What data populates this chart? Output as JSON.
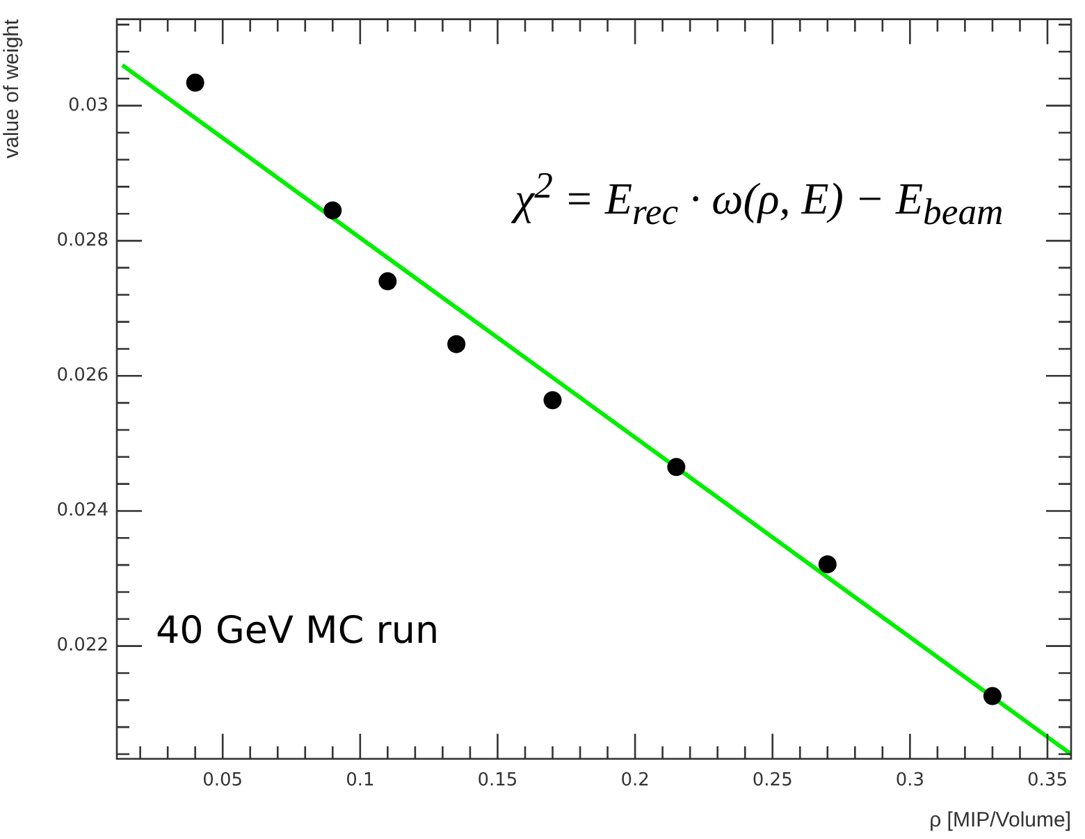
{
  "chart_data": {
    "type": "scatter",
    "xlabel": "ρ [MIP/Volume]",
    "ylabel": "value of weight",
    "xlim": [
      0.0115,
      0.3586
    ],
    "ylim": [
      0.02033,
      0.03128
    ],
    "xticks": [
      {
        "value": 0.02,
        "label": null
      },
      {
        "value": 0.03,
        "label": null
      },
      {
        "value": 0.04,
        "label": null
      },
      0.05,
      {
        "value": 0.06,
        "label": null
      },
      {
        "value": 0.07,
        "label": null
      },
      {
        "value": 0.08,
        "label": null
      },
      {
        "value": 0.09,
        "label": null
      },
      0.1,
      {
        "value": 0.11,
        "label": null
      },
      {
        "value": 0.12,
        "label": null
      },
      {
        "value": 0.13,
        "label": null
      },
      {
        "value": 0.14,
        "label": null
      },
      0.15,
      {
        "value": 0.16,
        "label": null
      },
      {
        "value": 0.17,
        "label": null
      },
      {
        "value": 0.18,
        "label": null
      },
      {
        "value": 0.19,
        "label": null
      },
      0.2,
      {
        "value": 0.21,
        "label": null
      },
      {
        "value": 0.22,
        "label": null
      },
      {
        "value": 0.23,
        "label": null
      },
      {
        "value": 0.24,
        "label": null
      },
      0.25,
      {
        "value": 0.26,
        "label": null
      },
      {
        "value": 0.27,
        "label": null
      },
      {
        "value": 0.28,
        "label": null
      },
      {
        "value": 0.29,
        "label": null
      },
      0.3,
      {
        "value": 0.31,
        "label": null
      },
      {
        "value": 0.32,
        "label": null
      },
      {
        "value": 0.33,
        "label": null
      },
      {
        "value": 0.34,
        "label": null
      },
      0.35
    ],
    "yticks": [
      {
        "value": 0.0204,
        "label": null
      },
      {
        "value": 0.0208,
        "label": null
      },
      0.022,
      {
        "value": 0.0212,
        "label": null
      },
      {
        "value": 0.0216,
        "label": null
      },
      {
        "value": 0.0224,
        "label": null
      },
      {
        "value": 0.0228,
        "label": null
      },
      {
        "value": 0.0232,
        "label": null
      },
      {
        "value": 0.0236,
        "label": null
      },
      0.024,
      {
        "value": 0.0244,
        "label": null
      },
      {
        "value": 0.0248,
        "label": null
      },
      {
        "value": 0.0252,
        "label": null
      },
      {
        "value": 0.0256,
        "label": null
      },
      0.026,
      {
        "value": 0.0264,
        "label": null
      },
      {
        "value": 0.0268,
        "label": null
      },
      {
        "value": 0.0272,
        "label": null
      },
      {
        "value": 0.0276,
        "label": null
      },
      0.028,
      {
        "value": 0.0284,
        "label": null
      },
      {
        "value": 0.0288,
        "label": null
      },
      {
        "value": 0.0292,
        "label": null
      },
      {
        "value": 0.0296,
        "label": null
      },
      0.03,
      {
        "value": 0.0304,
        "label": null
      },
      {
        "value": 0.0308,
        "label": null
      },
      {
        "value": 0.0312,
        "label": null
      }
    ],
    "grid": false,
    "legend": false,
    "series": [
      {
        "color": "#000000",
        "marker": "circle",
        "x": [
          0.04,
          0.09,
          0.11,
          0.135,
          0.17,
          0.215,
          0.27,
          0.33
        ],
        "values": [
          0.03034,
          0.02845,
          0.0274,
          0.02647,
          0.02564,
          0.02465,
          0.02321,
          0.02126
        ]
      },
      {
        "type": "line",
        "color": "#00ee00",
        "x": [
          0.0135,
          0.3586
        ],
        "values": [
          0.0306,
          0.0204
        ],
        "line_style": "solid",
        "marker": "none"
      }
    ],
    "annotations": [
      "χ$^{2}$ = E$_{rec}$ · ω(ρ, E) − E$_{beam}$",
      "40 GeV MC run"
    ]
  }
}
